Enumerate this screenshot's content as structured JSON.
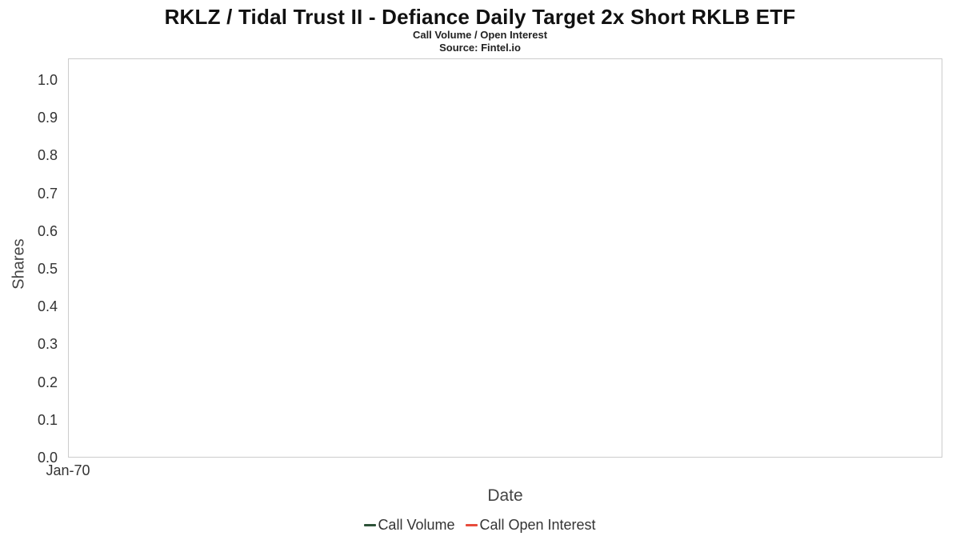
{
  "header": {
    "title": "RKLZ / Tidal Trust II - Defiance Daily Target 2x Short RKLB ETF",
    "subtitle": "Call Volume / Open Interest",
    "source": "Source: Fintel.io"
  },
  "chart_data": {
    "type": "line",
    "title": "RKLZ / Tidal Trust II - Defiance Daily Target 2x Short RKLB ETF",
    "subtitle": "Call Volume / Open Interest",
    "source": "Source: Fintel.io",
    "xlabel": "Date",
    "ylabel": "Shares",
    "ylim": [
      0.0,
      1.0
    ],
    "ytick_labels": [
      "0.0",
      "0.1",
      "0.2",
      "0.3",
      "0.4",
      "0.5",
      "0.6",
      "0.7",
      "0.8",
      "0.9",
      "1.0"
    ],
    "xtick_labels": [
      "Jan-70"
    ],
    "grid": false,
    "legend_position": "bottom",
    "series": [
      {
        "name": "Call Volume",
        "color": "#2d5238",
        "x": [],
        "values": []
      },
      {
        "name": "Call Open Interest",
        "color": "#e74c3c",
        "x": [],
        "values": []
      }
    ]
  },
  "legend": {
    "items": [
      {
        "label": "Call Volume",
        "color": "#2d5238"
      },
      {
        "label": "Call Open Interest",
        "color": "#e74c3c"
      }
    ]
  }
}
